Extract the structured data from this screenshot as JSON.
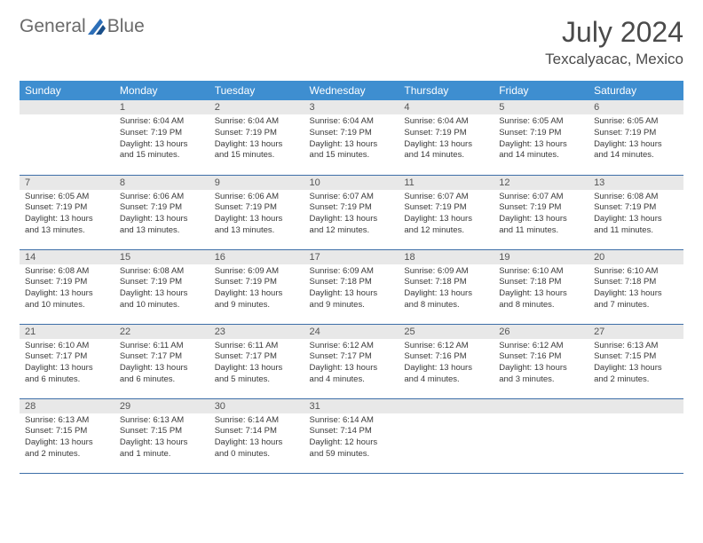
{
  "logo": {
    "pre": "General",
    "post": "Blue"
  },
  "title": "July 2024",
  "location": "Texcalyacac, Mexico",
  "dayHeaders": [
    "Sunday",
    "Monday",
    "Tuesday",
    "Wednesday",
    "Thursday",
    "Friday",
    "Saturday"
  ],
  "colors": {
    "headerBg": "#3e8ed0",
    "headerText": "#ffffff",
    "dayNumBg": "#e8e8e8",
    "border": "#3e6fa8"
  },
  "days": [
    null,
    {
      "n": "1",
      "sr": "6:04 AM",
      "ss": "7:19 PM",
      "dl": "13 hours and 15 minutes."
    },
    {
      "n": "2",
      "sr": "6:04 AM",
      "ss": "7:19 PM",
      "dl": "13 hours and 15 minutes."
    },
    {
      "n": "3",
      "sr": "6:04 AM",
      "ss": "7:19 PM",
      "dl": "13 hours and 15 minutes."
    },
    {
      "n": "4",
      "sr": "6:04 AM",
      "ss": "7:19 PM",
      "dl": "13 hours and 14 minutes."
    },
    {
      "n": "5",
      "sr": "6:05 AM",
      "ss": "7:19 PM",
      "dl": "13 hours and 14 minutes."
    },
    {
      "n": "6",
      "sr": "6:05 AM",
      "ss": "7:19 PM",
      "dl": "13 hours and 14 minutes."
    },
    {
      "n": "7",
      "sr": "6:05 AM",
      "ss": "7:19 PM",
      "dl": "13 hours and 13 minutes."
    },
    {
      "n": "8",
      "sr": "6:06 AM",
      "ss": "7:19 PM",
      "dl": "13 hours and 13 minutes."
    },
    {
      "n": "9",
      "sr": "6:06 AM",
      "ss": "7:19 PM",
      "dl": "13 hours and 13 minutes."
    },
    {
      "n": "10",
      "sr": "6:07 AM",
      "ss": "7:19 PM",
      "dl": "13 hours and 12 minutes."
    },
    {
      "n": "11",
      "sr": "6:07 AM",
      "ss": "7:19 PM",
      "dl": "13 hours and 12 minutes."
    },
    {
      "n": "12",
      "sr": "6:07 AM",
      "ss": "7:19 PM",
      "dl": "13 hours and 11 minutes."
    },
    {
      "n": "13",
      "sr": "6:08 AM",
      "ss": "7:19 PM",
      "dl": "13 hours and 11 minutes."
    },
    {
      "n": "14",
      "sr": "6:08 AM",
      "ss": "7:19 PM",
      "dl": "13 hours and 10 minutes."
    },
    {
      "n": "15",
      "sr": "6:08 AM",
      "ss": "7:19 PM",
      "dl": "13 hours and 10 minutes."
    },
    {
      "n": "16",
      "sr": "6:09 AM",
      "ss": "7:19 PM",
      "dl": "13 hours and 9 minutes."
    },
    {
      "n": "17",
      "sr": "6:09 AM",
      "ss": "7:18 PM",
      "dl": "13 hours and 9 minutes."
    },
    {
      "n": "18",
      "sr": "6:09 AM",
      "ss": "7:18 PM",
      "dl": "13 hours and 8 minutes."
    },
    {
      "n": "19",
      "sr": "6:10 AM",
      "ss": "7:18 PM",
      "dl": "13 hours and 8 minutes."
    },
    {
      "n": "20",
      "sr": "6:10 AM",
      "ss": "7:18 PM",
      "dl": "13 hours and 7 minutes."
    },
    {
      "n": "21",
      "sr": "6:10 AM",
      "ss": "7:17 PM",
      "dl": "13 hours and 6 minutes."
    },
    {
      "n": "22",
      "sr": "6:11 AM",
      "ss": "7:17 PM",
      "dl": "13 hours and 6 minutes."
    },
    {
      "n": "23",
      "sr": "6:11 AM",
      "ss": "7:17 PM",
      "dl": "13 hours and 5 minutes."
    },
    {
      "n": "24",
      "sr": "6:12 AM",
      "ss": "7:17 PM",
      "dl": "13 hours and 4 minutes."
    },
    {
      "n": "25",
      "sr": "6:12 AM",
      "ss": "7:16 PM",
      "dl": "13 hours and 4 minutes."
    },
    {
      "n": "26",
      "sr": "6:12 AM",
      "ss": "7:16 PM",
      "dl": "13 hours and 3 minutes."
    },
    {
      "n": "27",
      "sr": "6:13 AM",
      "ss": "7:15 PM",
      "dl": "13 hours and 2 minutes."
    },
    {
      "n": "28",
      "sr": "6:13 AM",
      "ss": "7:15 PM",
      "dl": "13 hours and 2 minutes."
    },
    {
      "n": "29",
      "sr": "6:13 AM",
      "ss": "7:15 PM",
      "dl": "13 hours and 1 minute."
    },
    {
      "n": "30",
      "sr": "6:14 AM",
      "ss": "7:14 PM",
      "dl": "13 hours and 0 minutes."
    },
    {
      "n": "31",
      "sr": "6:14 AM",
      "ss": "7:14 PM",
      "dl": "12 hours and 59 minutes."
    },
    null,
    null,
    null
  ],
  "labels": {
    "sunrise": "Sunrise:",
    "sunset": "Sunset:",
    "daylight": "Daylight:"
  }
}
